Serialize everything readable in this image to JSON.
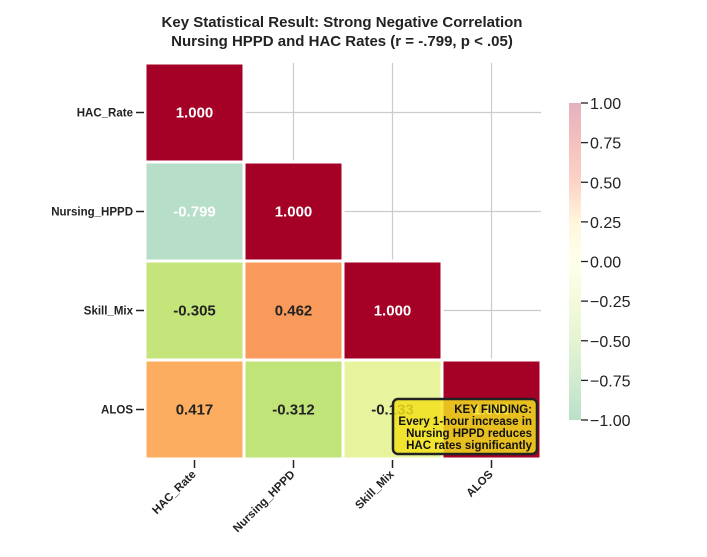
{
  "chart_data": {
    "type": "heatmap",
    "title_lines": [
      "Key Statistical Result: Strong Negative Correlation",
      "Nursing HPPD and HAC Rates (r = -.799, p < .05)"
    ],
    "row_labels": [
      "HAC_Rate",
      "Nursing_HPPD",
      "Skill_Mix",
      "ALOS"
    ],
    "col_labels": [
      "HAC_Rate",
      "Nursing_HPPD",
      "Skill_Mix",
      "ALOS"
    ],
    "cells": [
      {
        "row": 0,
        "col": 0,
        "value": 1.0,
        "label": "1.000",
        "color": "#a50026",
        "text_color": "#ffffff"
      },
      {
        "row": 1,
        "col": 0,
        "value": -0.799,
        "label": "-0.799",
        "color": "#b6dec8",
        "text_color": "#ffffff"
      },
      {
        "row": 1,
        "col": 1,
        "value": 1.0,
        "label": "1.000",
        "color": "#a50026",
        "text_color": "#ffffff"
      },
      {
        "row": 2,
        "col": 0,
        "value": -0.305,
        "label": "-0.305",
        "color": "#c3e57a",
        "text_color": "#222222"
      },
      {
        "row": 2,
        "col": 1,
        "value": 0.462,
        "label": "0.462",
        "color": "#f99a5b",
        "text_color": "#222222"
      },
      {
        "row": 2,
        "col": 2,
        "value": 1.0,
        "label": "1.000",
        "color": "#a50026",
        "text_color": "#ffffff"
      },
      {
        "row": 3,
        "col": 0,
        "value": 0.417,
        "label": "0.417",
        "color": "#fdad60",
        "text_color": "#222222"
      },
      {
        "row": 3,
        "col": 1,
        "value": -0.312,
        "label": "-0.312",
        "color": "#c1e478",
        "text_color": "#222222"
      },
      {
        "row": 3,
        "col": 2,
        "value": -0.133,
        "label": "-0.133",
        "color": "#e7f49d",
        "text_color": "#222222"
      },
      {
        "row": 3,
        "col": 3,
        "value": 1.0,
        "label": "1.000",
        "color": "#a50026",
        "text_color": "#ffffff"
      }
    ],
    "colorbar": {
      "range": [
        -1.0,
        1.0
      ],
      "ticks": [
        1.0,
        0.75,
        0.5,
        0.25,
        0.0,
        -0.25,
        -0.5,
        -0.75,
        -1.0
      ],
      "tick_labels": [
        "1.00",
        "0.75",
        "0.50",
        "0.25",
        "0.00",
        "−0.25",
        "−0.50",
        "−0.75",
        "−1.00"
      ],
      "colors": [
        "#a50026",
        "#f46d43",
        "#fee08b",
        "#ffffbf",
        "#d9ef8b",
        "#a6d96a",
        "#66bd63"
      ]
    },
    "annotation": {
      "lines": [
        "KEY FINDING:",
        "Every 1-hour increase in",
        "Nursing HPPD reduces",
        "HAC rates significantly"
      ],
      "background": "#f2e01e",
      "border": "#222222"
    },
    "grid": true
  }
}
